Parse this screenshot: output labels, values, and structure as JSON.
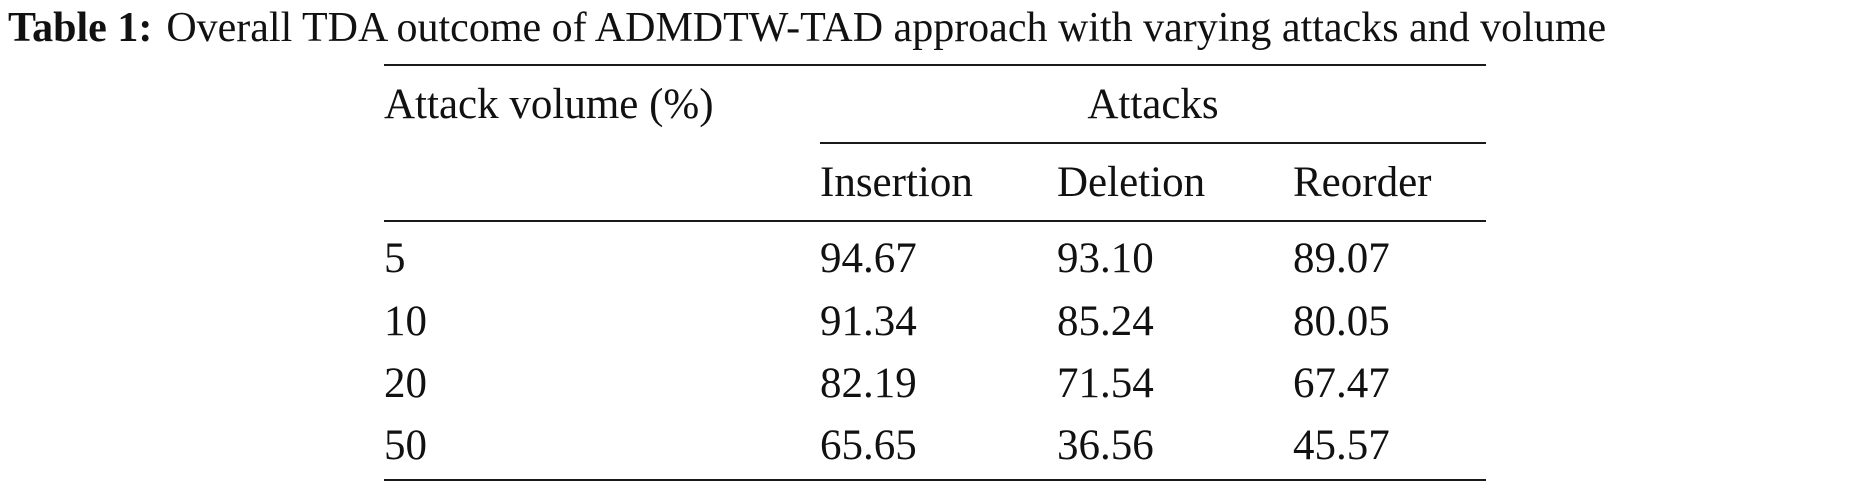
{
  "caption": {
    "label": "Table 1:",
    "text": "Overall TDA outcome of ADMDTW-TAD approach with varying attacks and volume"
  },
  "table": {
    "row_header_label": "Attack volume (%)",
    "group_header_label": "Attacks",
    "columns": [
      "Insertion",
      "Deletion",
      "Reorder"
    ],
    "rows": [
      {
        "volume": "5",
        "values": [
          "94.67",
          "93.10",
          "89.07"
        ]
      },
      {
        "volume": "10",
        "values": [
          "91.34",
          "85.24",
          "80.05"
        ]
      },
      {
        "volume": "20",
        "values": [
          "82.19",
          "71.54",
          "67.47"
        ]
      },
      {
        "volume": "50",
        "values": [
          "65.65",
          "36.56",
          "45.57"
        ]
      }
    ]
  }
}
